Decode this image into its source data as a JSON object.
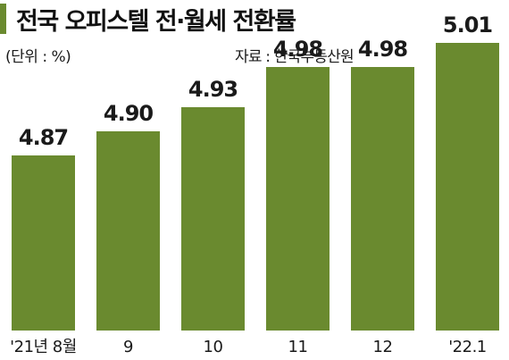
{
  "header": {
    "title": "전국 오피스텔 전·월세 전환률",
    "unit": "(단위 : %)",
    "source": "자료 : 한국부동산원"
  },
  "colors": {
    "bar": "#6a8a2f",
    "text": "#1a1a1a"
  },
  "chart_data": {
    "type": "bar",
    "categories": [
      "'21년 8월",
      "9",
      "10",
      "11",
      "12",
      "'22.1"
    ],
    "values": [
      4.87,
      4.9,
      4.93,
      4.98,
      4.98,
      5.01
    ],
    "value_labels": [
      "4.87",
      "4.90",
      "4.93",
      "4.98",
      "4.98",
      "5.01"
    ],
    "title": "전국 오피스텔 전·월세 전환률",
    "xlabel": "",
    "ylabel": "",
    "grid": false,
    "legend": "none"
  }
}
